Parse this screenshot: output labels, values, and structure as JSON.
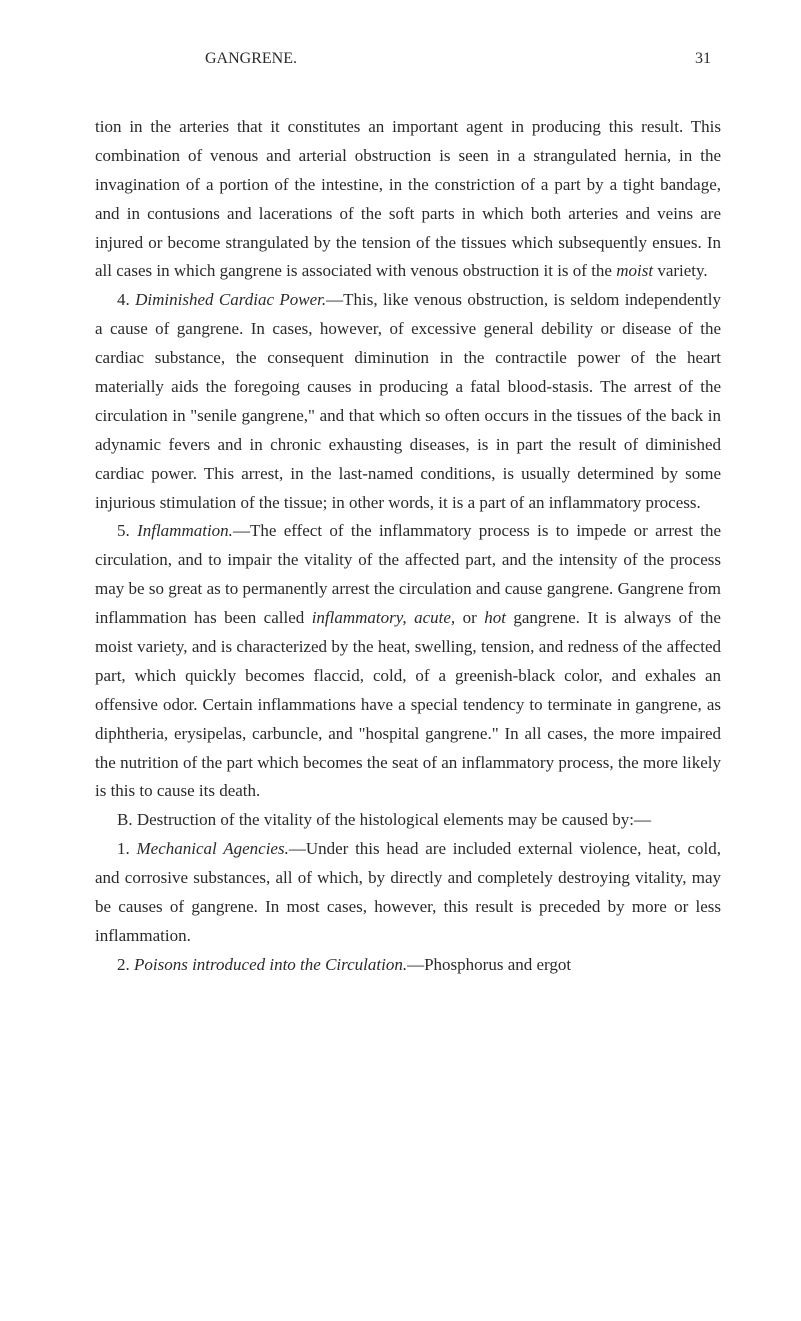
{
  "header": {
    "title": "GANGRENE.",
    "pageNumber": "31"
  },
  "paragraphs": {
    "p1": "tion in the arteries that it constitutes an important agent in producing this result. This combination of venous and arterial obstruction is seen in a strangulated hernia, in the invagination of a portion of the intestine, in the constriction of a part by a tight bandage, and in contusions and lacerations of the soft parts in which both arteries and veins are injured or become strangulated by the tension of the tissues which subsequently ensues. In all cases in which gangrene is associated with venous obstruction it is of the ",
    "p1_italic": "moist",
    "p1_end": " variety.",
    "p2_num": "4. ",
    "p2_italic1": "Diminished Cardiac Power.",
    "p2_text1": "—This, like venous obstruction, is seldom independently a cause of gangrene. In cases, however, of excessive general debility or disease of the cardiac substance, the consequent diminution in the contractile power of the heart materially aids the foregoing causes in producing a fatal blood-stasis. The arrest of the circulation in \"senile gangrene,\" and that which so often occurs in the tissues of the back in adynamic fevers and in chronic exhausting diseases, is in part the result of diminished cardiac power. This arrest, in the last-named conditions, is usually determined by some injurious stimulation of the tissue; in other words, it is a part of an inflammatory process.",
    "p3_num": "5. ",
    "p3_italic1": "Inflammation.",
    "p3_text1": "—The effect of the inflammatory process is to impede or arrest the circulation, and to impair the vitality of the affected part, and the intensity of the process may be so great as to permanently arrest the circulation and cause gangrene. Gangrene from inflammation has been called ",
    "p3_italic2": "inflammatory, acute,",
    "p3_text2": " or ",
    "p3_italic3": "hot",
    "p3_text3": " gangrene. It is always of the moist variety, and is characterized by the heat, swelling, tension, and redness of the affected part, which quickly becomes flaccid, cold, of a greenish-black color, and exhales an offensive odor. Certain inflammations have a special tendency to terminate in gangrene, as diphtheria, erysipelas, carbuncle, and \"hospital gangrene.\" In all cases, the more impaired the nutrition of the part which becomes the seat of an inflammatory process, the more likely is this to cause its death.",
    "p4_b": "B. Destruction of the vitality of the histological elements may be caused by:—",
    "p5_num": "1. ",
    "p5_italic": "Mechanical Agencies.",
    "p5_text": "—Under this head are included external violence, heat, cold, and corrosive substances, all of which, by directly and completely destroying vitality, may be causes of gangrene. In most cases, however, this result is preceded by more or less inflammation.",
    "p6_num": "2. ",
    "p6_italic": "Poisons introduced into the Circulation.",
    "p6_text": "—Phosphorus and ergot"
  }
}
